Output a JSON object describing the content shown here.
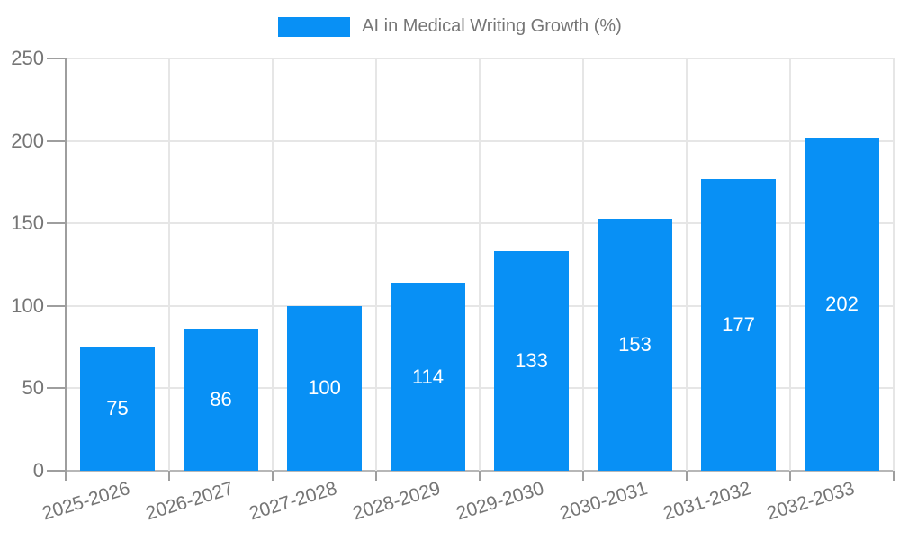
{
  "legend": {
    "label": "AI in Medical Writing Growth (%)"
  },
  "chart_data": {
    "type": "bar",
    "title": "AI in Medical Writing Growth (%)",
    "categories": [
      "2025-2026",
      "2026-2027",
      "2027-2028",
      "2028-2029",
      "2029-2030",
      "2030-2031",
      "2031-2032",
      "2032-2033"
    ],
    "values": [
      75,
      86,
      100,
      114,
      133,
      153,
      177,
      202
    ],
    "xlabel": "",
    "ylabel": "",
    "ylim": [
      0,
      250
    ],
    "yticks": [
      0,
      50,
      100,
      150,
      200,
      250
    ],
    "grid": true,
    "legend_position": "top-center",
    "bar_color": "#0890f5",
    "value_label_color": "#ffffff",
    "axis_text_color": "#757575",
    "gridline_color": "#e6e6e6",
    "axis_line_color": "#9e9e9e"
  }
}
